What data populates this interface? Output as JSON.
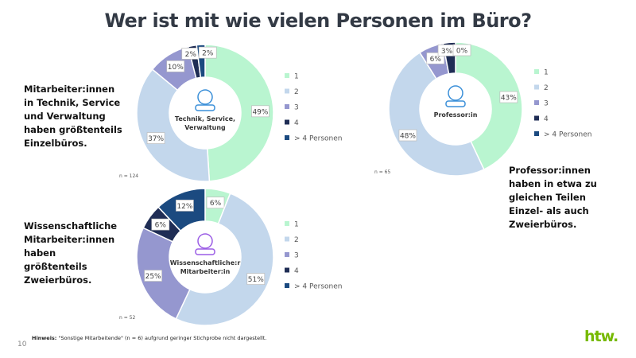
{
  "title": "Wer ist mit wie vielen Personen im Büro?",
  "notes": [
    "Mitarbeiter:innen in Technik, Service und Verwaltung haben größtenteils Einzelbüros.",
    "Professor:innen haben in etwa zu gleichen Teilen Einzel- als auch Zweierbüros.",
    "Wissenschaftliche Mitarbeiter:innen haben größtenteils Zweierbüros."
  ],
  "footnote_bold": "Hinweis:",
  "footnote": " \"Sonstige Mitarbeitende\" (n = 6) aufgrund geringer Stichprobe nicht dargestellt.",
  "page_number": "10",
  "logo": "htw.",
  "colors": [
    "#b9f5d0",
    "#c3d7ec",
    "#9597cf",
    "#1f2d55",
    "#1b4a80"
  ],
  "chart_data": [
    {
      "type": "pie",
      "variant": "donut",
      "center_label": "Technik, Service, Verwaltung",
      "center_icon": "gear-people-icon",
      "n_label": "n = 124",
      "categories": [
        "1",
        "2",
        "3",
        "4",
        "> 4 Personen"
      ],
      "values": [
        49,
        37,
        10,
        2,
        2
      ],
      "legend_position": "right"
    },
    {
      "type": "pie",
      "variant": "donut",
      "center_label": "Professor:in",
      "center_icon": "teacher-board-icon",
      "n_label": "n = 65",
      "categories": [
        "1",
        "2",
        "3",
        "4",
        "> 4 Personen"
      ],
      "values": [
        43,
        48,
        6,
        3,
        0
      ],
      "legend_position": "right"
    },
    {
      "type": "pie",
      "variant": "donut",
      "center_label": "Wissenschaftliche:r Mitarbeiter:in",
      "center_icon": "research-magnifier-icon",
      "n_label": "n = 52",
      "categories": [
        "1",
        "2",
        "3",
        "4",
        "> 4 Personen"
      ],
      "values": [
        6,
        51,
        25,
        6,
        12
      ],
      "legend_position": "right"
    }
  ]
}
